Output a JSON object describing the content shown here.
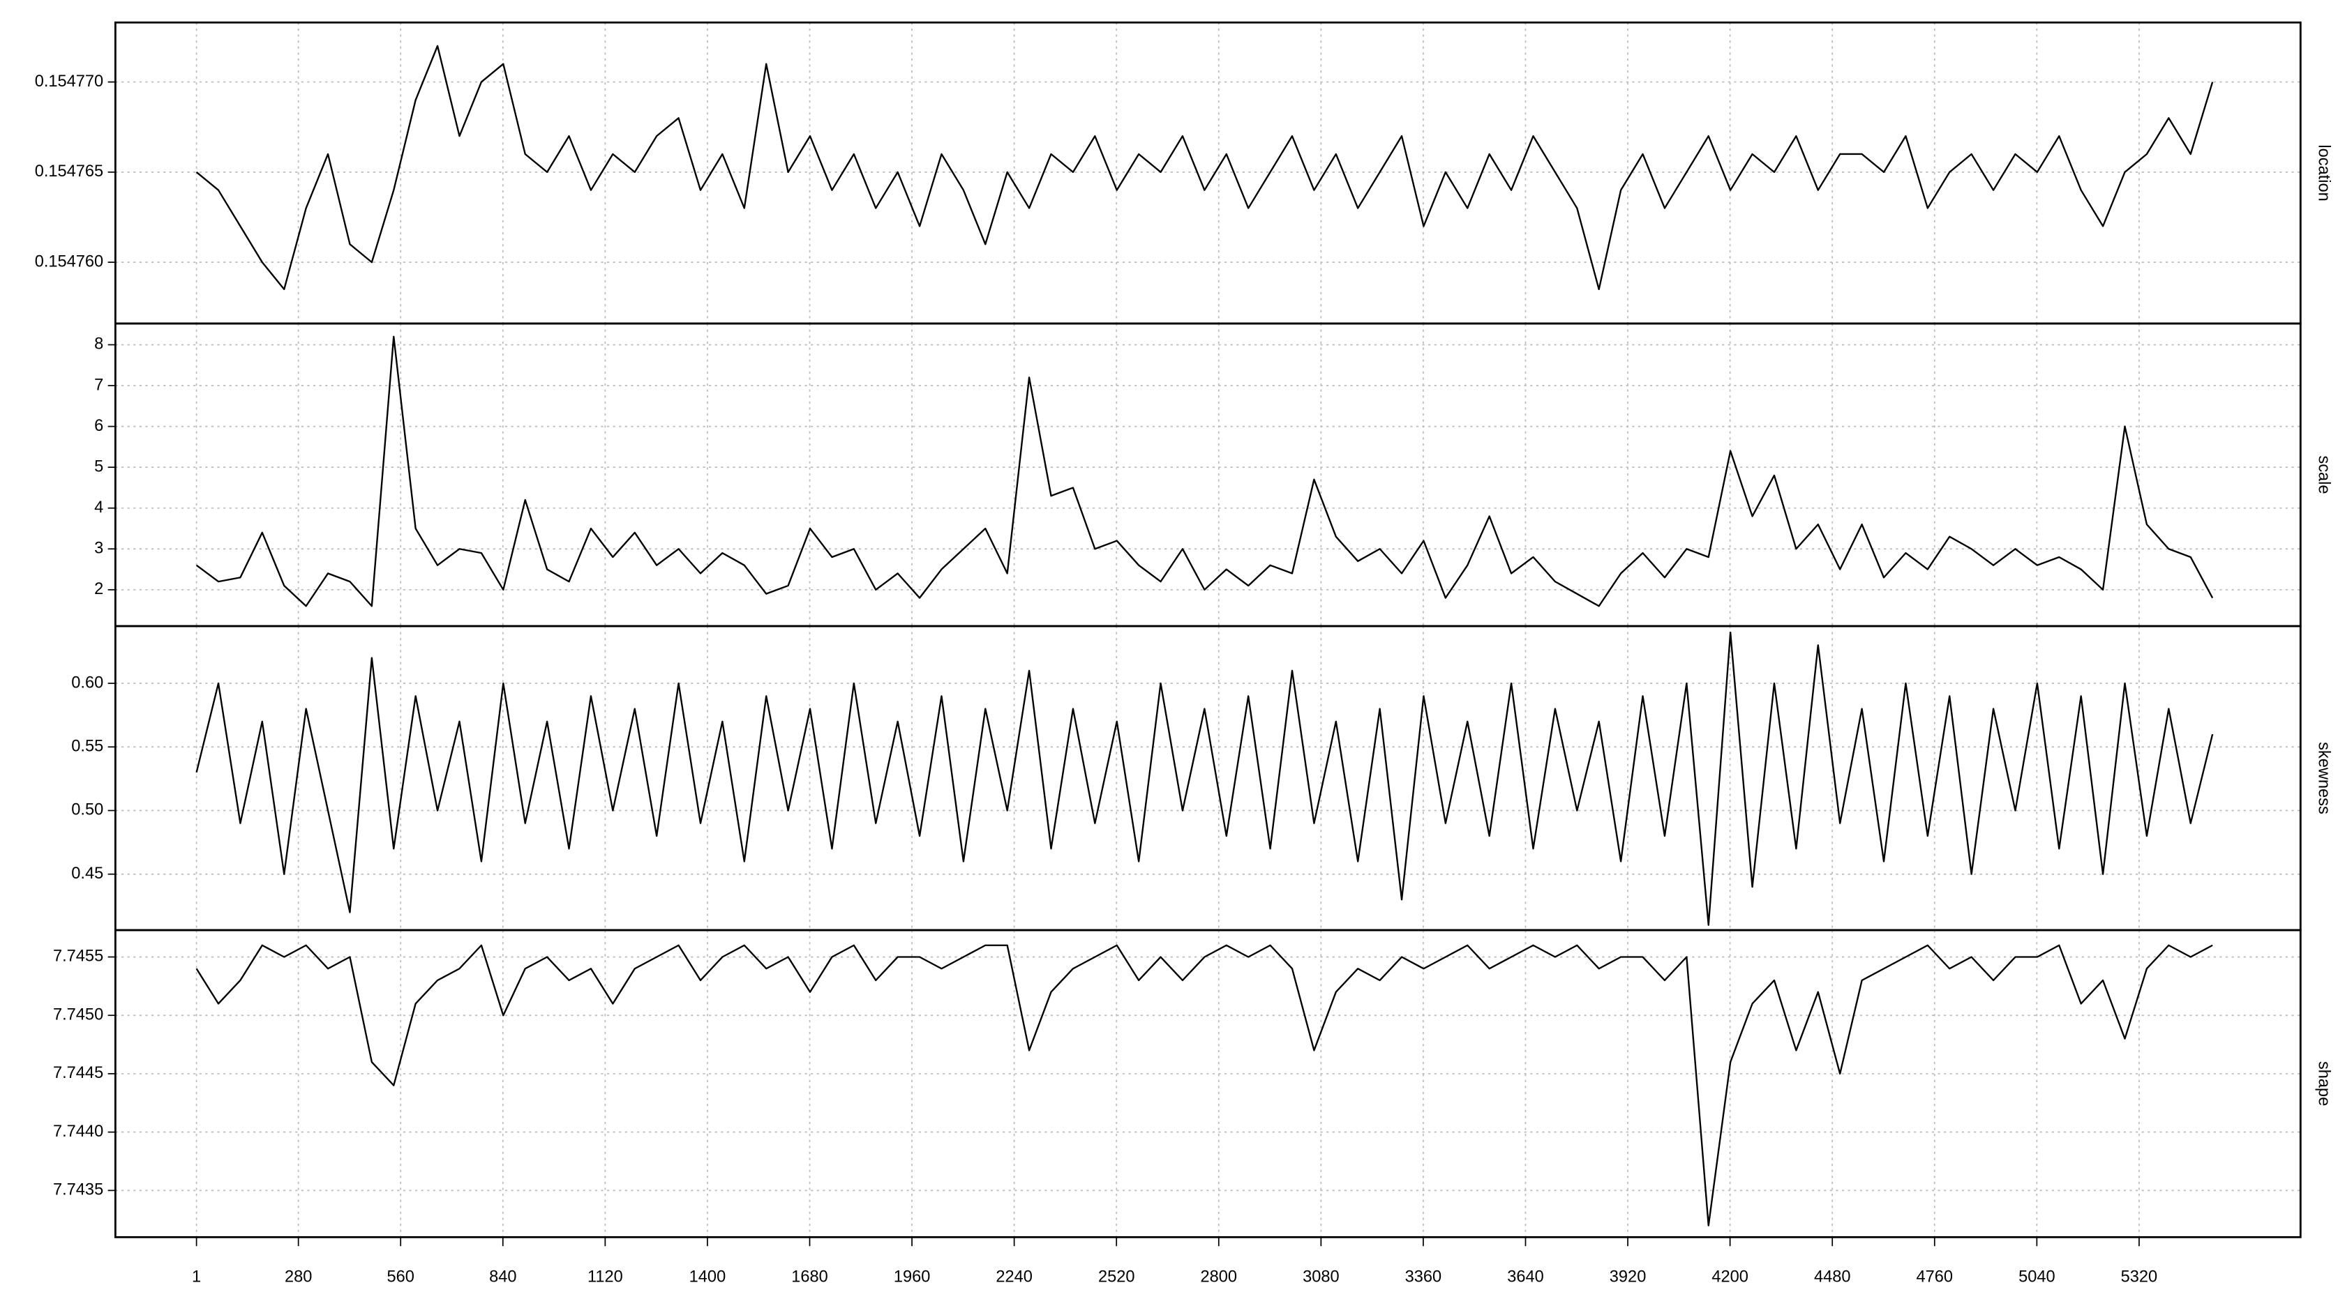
{
  "chart_data": [
    {
      "type": "line",
      "ylabel": "location",
      "grid": true,
      "color": "#000000",
      "xlim": [
        -221,
        5762
      ],
      "ylim": [
        0.1547566,
        0.1547733
      ],
      "yticks": [
        {
          "value": 0.15476,
          "label": "0.154760"
        },
        0.154765,
        {
          "value": 0.15477,
          "label": "0.154770"
        }
      ],
      "x": [
        1,
        61,
        121,
        181,
        241,
        301,
        361,
        421,
        481,
        541,
        601,
        661,
        721,
        781,
        841,
        901,
        961,
        1021,
        1081,
        1141,
        1201,
        1261,
        1321,
        1381,
        1441,
        1501,
        1561,
        1621,
        1681,
        1741,
        1801,
        1861,
        1921,
        1981,
        2041,
        2101,
        2161,
        2221,
        2281,
        2341,
        2401,
        2461,
        2521,
        2581,
        2641,
        2701,
        2761,
        2821,
        2881,
        2941,
        3001,
        3061,
        3121,
        3181,
        3241,
        3301,
        3361,
        3421,
        3481,
        3541,
        3601,
        3661,
        3721,
        3781,
        3841,
        3901,
        3961,
        4021,
        4081,
        4141,
        4201,
        4261,
        4321,
        4381,
        4441,
        4501,
        4561,
        4621,
        4681,
        4741,
        4801,
        4861,
        4921,
        4981,
        5041,
        5101,
        5161,
        5221,
        5281,
        5341,
        5401,
        5461,
        5521
      ],
      "values": [
        0.154765,
        0.154764,
        0.154762,
        0.15476,
        0.1547585,
        0.154763,
        0.154766,
        0.154761,
        0.15476,
        0.154764,
        0.154769,
        0.154772,
        0.154767,
        0.15477,
        0.154771,
        0.154766,
        0.154765,
        0.154767,
        0.154764,
        0.154766,
        0.154765,
        0.154767,
        0.154768,
        0.154764,
        0.154766,
        0.154763,
        0.154771,
        0.154765,
        0.154767,
        0.154764,
        0.154766,
        0.154763,
        0.154765,
        0.154762,
        0.154766,
        0.154764,
        0.154761,
        0.154765,
        0.154763,
        0.154766,
        0.154765,
        0.154767,
        0.154764,
        0.154766,
        0.154765,
        0.154767,
        0.154764,
        0.154766,
        0.154763,
        0.154765,
        0.154767,
        0.154764,
        0.154766,
        0.154763,
        0.154765,
        0.154767,
        0.154762,
        0.154765,
        0.154763,
        0.154766,
        0.154764,
        0.154767,
        0.154765,
        0.154763,
        0.1547585,
        0.154764,
        0.154766,
        0.154763,
        0.154765,
        0.154767,
        0.154764,
        0.154766,
        0.154765,
        0.154767,
        0.154764,
        0.154766,
        0.154766,
        0.154765,
        0.154767,
        0.154763,
        0.154765,
        0.154766,
        0.154764,
        0.154766,
        0.154765,
        0.154767,
        0.154764,
        0.154762,
        0.154765,
        0.154766,
        0.154768,
        0.154766,
        0.15477
      ]
    },
    {
      "type": "line",
      "ylabel": "scale",
      "grid": true,
      "color": "#000000",
      "xlim": [
        -221,
        5762
      ],
      "ylim": [
        1.11,
        8.52
      ],
      "yticks": [
        2,
        3,
        4,
        5,
        6,
        7,
        8
      ],
      "x": [
        1,
        61,
        121,
        181,
        241,
        301,
        361,
        421,
        481,
        541,
        601,
        661,
        721,
        781,
        841,
        901,
        961,
        1021,
        1081,
        1141,
        1201,
        1261,
        1321,
        1381,
        1441,
        1501,
        1561,
        1621,
        1681,
        1741,
        1801,
        1861,
        1921,
        1981,
        2041,
        2101,
        2161,
        2221,
        2281,
        2341,
        2401,
        2461,
        2521,
        2581,
        2641,
        2701,
        2761,
        2821,
        2881,
        2941,
        3001,
        3061,
        3121,
        3181,
        3241,
        3301,
        3361,
        3421,
        3481,
        3541,
        3601,
        3661,
        3721,
        3781,
        3841,
        3901,
        3961,
        4021,
        4081,
        4141,
        4201,
        4261,
        4321,
        4381,
        4441,
        4501,
        4561,
        4621,
        4681,
        4741,
        4801,
        4861,
        4921,
        4981,
        5041,
        5101,
        5161,
        5221,
        5281,
        5341,
        5401,
        5461,
        5521
      ],
      "values": [
        2.6,
        2.2,
        2.3,
        3.4,
        2.1,
        1.6,
        2.4,
        2.2,
        1.6,
        8.2,
        3.5,
        2.6,
        3.0,
        2.9,
        2.0,
        4.2,
        2.5,
        2.2,
        3.5,
        2.8,
        3.4,
        2.6,
        3.0,
        2.4,
        2.9,
        2.6,
        1.9,
        2.1,
        3.5,
        2.8,
        3.0,
        2.0,
        2.4,
        1.8,
        2.5,
        3.0,
        3.5,
        2.4,
        7.2,
        4.3,
        4.5,
        3.0,
        3.2,
        2.6,
        2.2,
        3.0,
        2.0,
        2.5,
        2.1,
        2.6,
        2.4,
        4.7,
        3.3,
        2.7,
        3.0,
        2.4,
        3.2,
        1.8,
        2.6,
        3.8,
        2.4,
        2.8,
        2.2,
        1.9,
        1.6,
        2.4,
        2.9,
        2.3,
        3.0,
        2.8,
        5.4,
        3.8,
        4.8,
        3.0,
        3.6,
        2.5,
        3.6,
        2.3,
        2.9,
        2.5,
        3.3,
        3.0,
        2.6,
        3.0,
        2.6,
        2.8,
        2.5,
        2.0,
        6.0,
        3.6,
        3.0,
        2.8,
        1.8
      ]
    },
    {
      "type": "line",
      "ylabel": "skewness",
      "grid": true,
      "color": "#000000",
      "xlim": [
        -221,
        5762
      ],
      "ylim": [
        0.406,
        0.645
      ],
      "yticks": [
        0.45,
        {
          "value": 0.5,
          "label": "0.50"
        },
        0.55,
        {
          "value": 0.6,
          "label": "0.60"
        }
      ],
      "x": [
        1,
        61,
        121,
        181,
        241,
        301,
        361,
        421,
        481,
        541,
        601,
        661,
        721,
        781,
        841,
        901,
        961,
        1021,
        1081,
        1141,
        1201,
        1261,
        1321,
        1381,
        1441,
        1501,
        1561,
        1621,
        1681,
        1741,
        1801,
        1861,
        1921,
        1981,
        2041,
        2101,
        2161,
        2221,
        2281,
        2341,
        2401,
        2461,
        2521,
        2581,
        2641,
        2701,
        2761,
        2821,
        2881,
        2941,
        3001,
        3061,
        3121,
        3181,
        3241,
        3301,
        3361,
        3421,
        3481,
        3541,
        3601,
        3661,
        3721,
        3781,
        3841,
        3901,
        3961,
        4021,
        4081,
        4141,
        4201,
        4261,
        4321,
        4381,
        4441,
        4501,
        4561,
        4621,
        4681,
        4741,
        4801,
        4861,
        4921,
        4981,
        5041,
        5101,
        5161,
        5221,
        5281,
        5341,
        5401,
        5461,
        5521
      ],
      "values": [
        0.53,
        0.6,
        0.49,
        0.57,
        0.45,
        0.58,
        0.5,
        0.42,
        0.62,
        0.47,
        0.59,
        0.5,
        0.57,
        0.46,
        0.6,
        0.49,
        0.57,
        0.47,
        0.59,
        0.5,
        0.58,
        0.48,
        0.6,
        0.49,
        0.57,
        0.46,
        0.59,
        0.5,
        0.58,
        0.47,
        0.6,
        0.49,
        0.57,
        0.48,
        0.59,
        0.46,
        0.58,
        0.5,
        0.61,
        0.47,
        0.58,
        0.49,
        0.57,
        0.46,
        0.6,
        0.5,
        0.58,
        0.48,
        0.59,
        0.47,
        0.61,
        0.49,
        0.57,
        0.46,
        0.58,
        0.43,
        0.59,
        0.49,
        0.57,
        0.48,
        0.6,
        0.47,
        0.58,
        0.5,
        0.57,
        0.46,
        0.59,
        0.48,
        0.6,
        0.41,
        0.64,
        0.44,
        0.6,
        0.47,
        0.63,
        0.49,
        0.58,
        0.46,
        0.6,
        0.48,
        0.59,
        0.45,
        0.58,
        0.5,
        0.6,
        0.47,
        0.59,
        0.45,
        0.6,
        0.48,
        0.58,
        0.49,
        0.56
      ]
    },
    {
      "type": "line",
      "ylabel": "shape",
      "grid": true,
      "color": "#000000",
      "xlim": [
        -221,
        5762
      ],
      "ylim": [
        7.7431,
        7.74573
      ],
      "yticks": [
        7.7435,
        {
          "value": 7.744,
          "label": "7.7440"
        },
        7.7445,
        {
          "value": 7.745,
          "label": "7.7450"
        },
        7.7455
      ],
      "xticks": [
        1,
        280,
        560,
        840,
        1120,
        1400,
        1680,
        1960,
        2240,
        2520,
        2800,
        3080,
        3360,
        3640,
        3920,
        4200,
        4480,
        4760,
        5040,
        5320
      ],
      "x": [
        1,
        61,
        121,
        181,
        241,
        301,
        361,
        421,
        481,
        541,
        601,
        661,
        721,
        781,
        841,
        901,
        961,
        1021,
        1081,
        1141,
        1201,
        1261,
        1321,
        1381,
        1441,
        1501,
        1561,
        1621,
        1681,
        1741,
        1801,
        1861,
        1921,
        1981,
        2041,
        2101,
        2161,
        2221,
        2281,
        2341,
        2401,
        2461,
        2521,
        2581,
        2641,
        2701,
        2761,
        2821,
        2881,
        2941,
        3001,
        3061,
        3121,
        3181,
        3241,
        3301,
        3361,
        3421,
        3481,
        3541,
        3601,
        3661,
        3721,
        3781,
        3841,
        3901,
        3961,
        4021,
        4081,
        4141,
        4201,
        4261,
        4321,
        4381,
        4441,
        4501,
        4561,
        4621,
        4681,
        4741,
        4801,
        4861,
        4921,
        4981,
        5041,
        5101,
        5161,
        5221,
        5281,
        5341,
        5401,
        5461,
        5521
      ],
      "values": [
        7.7454,
        7.7451,
        7.7453,
        7.7456,
        7.7455,
        7.7456,
        7.7454,
        7.7455,
        7.7446,
        7.7444,
        7.7451,
        7.7453,
        7.7454,
        7.7456,
        7.745,
        7.7454,
        7.7455,
        7.7453,
        7.7454,
        7.7451,
        7.7454,
        7.7455,
        7.7456,
        7.7453,
        7.7455,
        7.7456,
        7.7454,
        7.7455,
        7.7452,
        7.7455,
        7.7456,
        7.7453,
        7.7455,
        7.7455,
        7.7454,
        7.7455,
        7.7456,
        7.7456,
        7.7447,
        7.7452,
        7.7454,
        7.7455,
        7.7456,
        7.7453,
        7.7455,
        7.7453,
        7.7455,
        7.7456,
        7.7455,
        7.7456,
        7.7454,
        7.7447,
        7.7452,
        7.7454,
        7.7453,
        7.7455,
        7.7454,
        7.7455,
        7.7456,
        7.7454,
        7.7455,
        7.7456,
        7.7455,
        7.7456,
        7.7454,
        7.7455,
        7.7455,
        7.7453,
        7.7455,
        7.7432,
        7.7446,
        7.7451,
        7.7453,
        7.7447,
        7.7452,
        7.7445,
        7.7453,
        7.7454,
        7.7455,
        7.7456,
        7.7454,
        7.7455,
        7.7453,
        7.7455,
        7.7455,
        7.7456,
        7.7451,
        7.7453,
        7.7448,
        7.7454,
        7.7456,
        7.7455,
        7.7456
      ]
    }
  ]
}
